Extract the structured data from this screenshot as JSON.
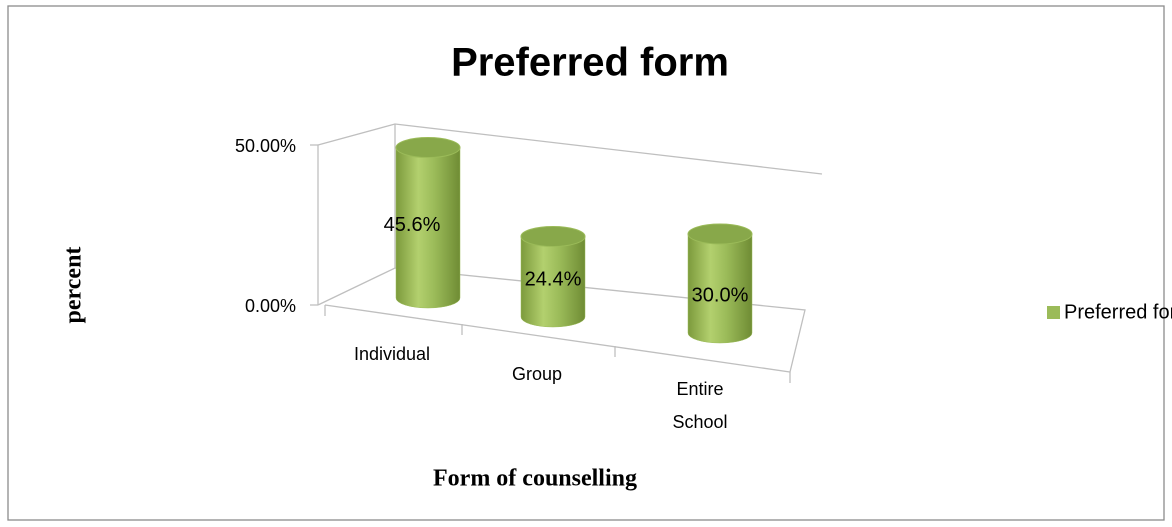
{
  "chart_data": {
    "type": "bar3d",
    "title": "Preferred form",
    "categories": [
      "Individual",
      "Group",
      "Entire School"
    ],
    "series": [
      {
        "name": "Preferred form",
        "color": "#9bbb59",
        "values": [
          45.6,
          24.4,
          30.0
        ],
        "value_labels": [
          "45.6%",
          "24.4%",
          "30.0%"
        ]
      }
    ],
    "ylim": [
      0,
      50
    ],
    "yticks": [
      {
        "value": 0,
        "label": "0.00%"
      },
      {
        "value": 50,
        "label": "50.00%"
      }
    ],
    "xlabel": "Form of counselling",
    "ylabel": "percent",
    "legend": "right"
  }
}
